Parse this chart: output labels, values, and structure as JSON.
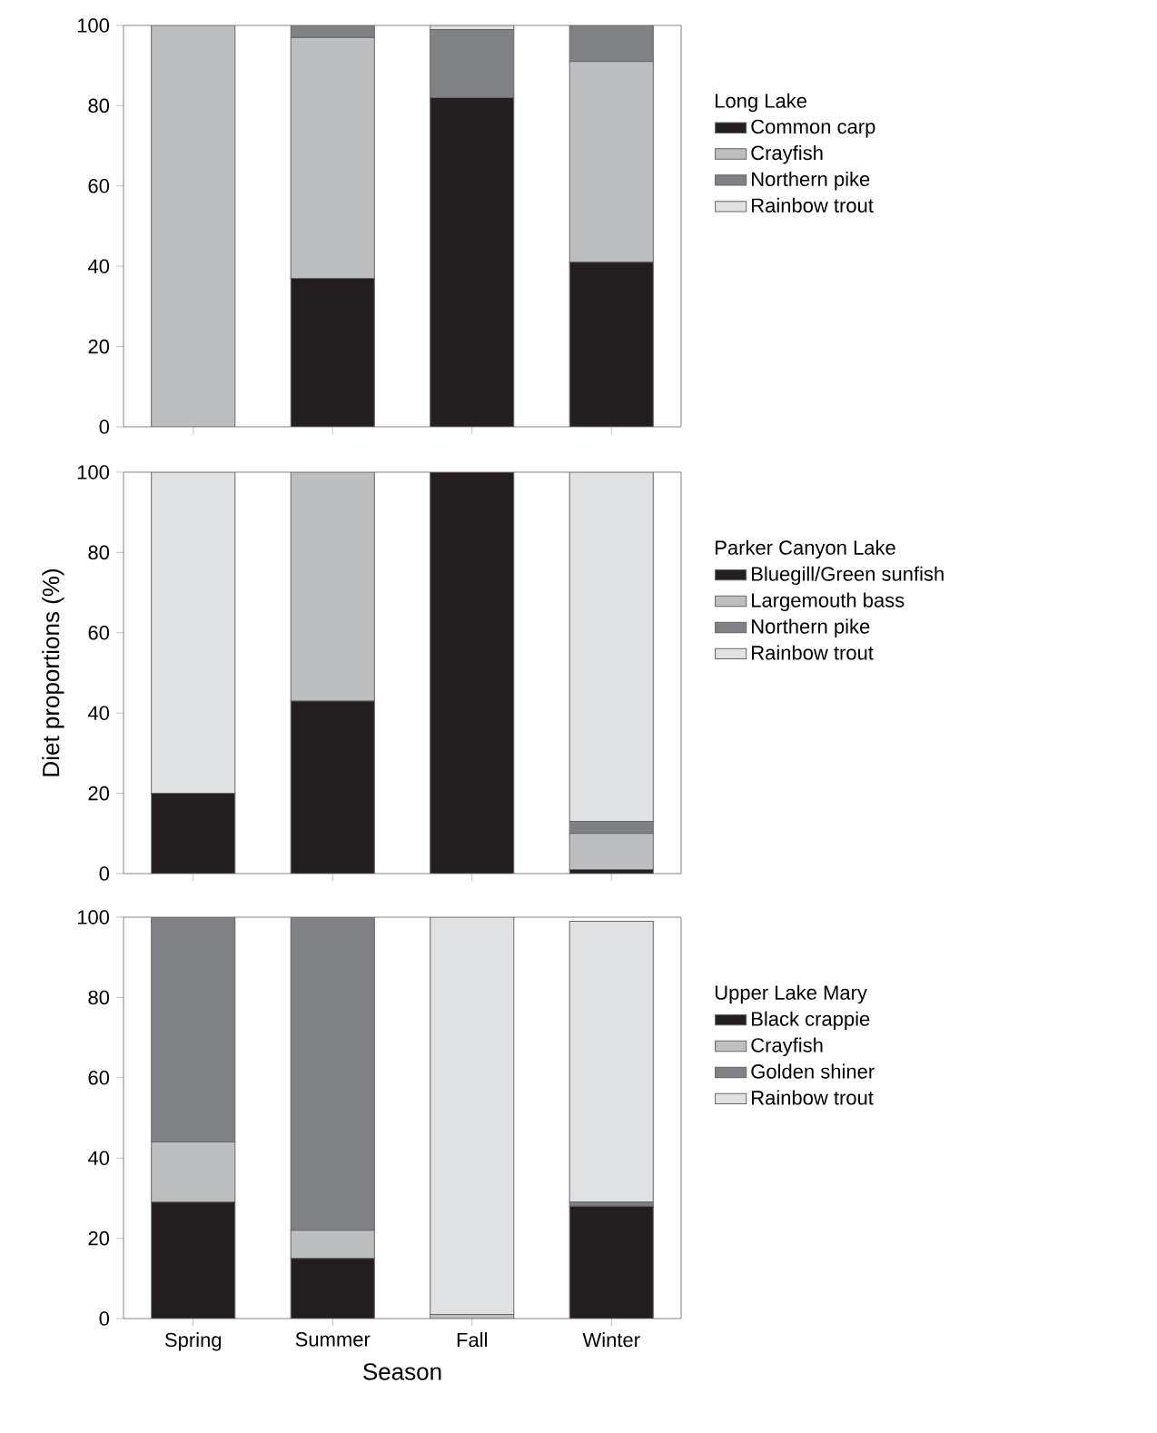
{
  "chart_data": [
    {
      "type": "bar",
      "stacked": true,
      "legend_title": "Long Lake",
      "categories": [
        null,
        null,
        null,
        null
      ],
      "ylim": [
        0,
        100
      ],
      "yticks": [
        0,
        20,
        40,
        60,
        80,
        100
      ],
      "legend": "right",
      "tick_labels": "y",
      "series": [
        {
          "name": "Common carp",
          "color": "#231f20",
          "values": [
            0,
            37,
            82,
            41
          ]
        },
        {
          "name": "Crayfish",
          "color": "#bdbec0",
          "values": [
            100,
            60,
            0,
            50
          ]
        },
        {
          "name": "Northern pike",
          "color": "#808184",
          "values": [
            0,
            3,
            17,
            9
          ]
        },
        {
          "name": "Rainbow trout",
          "color": "#e0e1e2",
          "values": [
            0,
            0,
            1,
            0
          ]
        }
      ]
    },
    {
      "type": "bar",
      "stacked": true,
      "legend_title": "Parker Canyon Lake",
      "ylabel": "Diet proportions (%)",
      "categories": [
        null,
        null,
        null,
        null
      ],
      "ylim": [
        0,
        100
      ],
      "yticks": [
        0,
        20,
        40,
        60,
        80,
        100
      ],
      "legend": "right",
      "tick_labels": "y",
      "series": [
        {
          "name": "Bluegill/Green sunfish",
          "color": "#231f20",
          "values": [
            20,
            43,
            100,
            1
          ]
        },
        {
          "name": "Largemouth bass",
          "color": "#bdbec0",
          "values": [
            0,
            57,
            0,
            9
          ]
        },
        {
          "name": "Northern pike",
          "color": "#808184",
          "values": [
            0,
            0,
            0,
            3
          ]
        },
        {
          "name": "Rainbow trout",
          "color": "#e0e1e2",
          "values": [
            80,
            0,
            0,
            87
          ]
        }
      ]
    },
    {
      "type": "bar",
      "stacked": true,
      "legend_title": "Upper Lake Mary",
      "xlabel": "Season",
      "categories": [
        "Spring",
        "Summer",
        "Fall",
        "Winter"
      ],
      "ylim": [
        0,
        100
      ],
      "yticks": [
        0,
        20,
        40,
        60,
        80,
        100
      ],
      "legend": "right",
      "series": [
        {
          "name": "Black crappie",
          "color": "#231f20",
          "values": [
            29,
            15,
            0,
            28
          ]
        },
        {
          "name": "Crayfish",
          "color": "#bdbec0",
          "values": [
            15,
            7,
            1,
            0
          ]
        },
        {
          "name": "Golden shiner",
          "color": "#808184",
          "values": [
            56,
            78,
            0,
            1
          ]
        },
        {
          "name": "Rainbow trout",
          "color": "#e0e1e2",
          "values": [
            0,
            0,
            99,
            70
          ]
        }
      ]
    }
  ]
}
